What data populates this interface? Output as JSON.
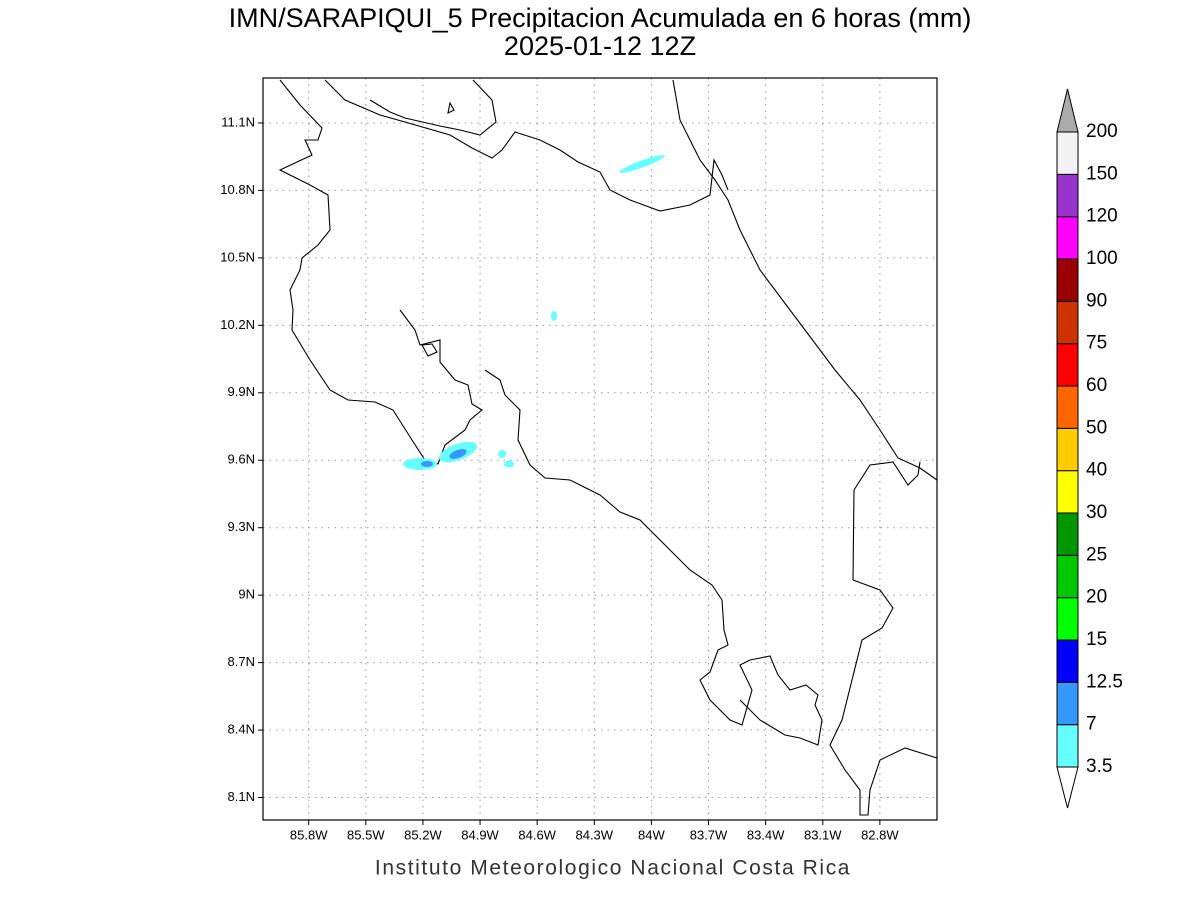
{
  "chart_data": {
    "type": "map",
    "title": "IMN/SARAPIQUI_5 Precipitacion Acumulada en 6 horas (mm)",
    "subtitle": "2025-01-12 12Z",
    "footer": "Instituto Meteorologico Nacional Costa Rica",
    "xlim": [
      -86.04,
      -82.5
    ],
    "ylim": [
      8.0,
      11.3
    ],
    "xticks": [
      {
        "value": -85.8,
        "label": "85.8W"
      },
      {
        "value": -85.5,
        "label": "85.5W"
      },
      {
        "value": -85.2,
        "label": "85.2W"
      },
      {
        "value": -84.9,
        "label": "84.9W"
      },
      {
        "value": -84.6,
        "label": "84.6W"
      },
      {
        "value": -84.3,
        "label": "84.3W"
      },
      {
        "value": -84.0,
        "label": "84W"
      },
      {
        "value": -83.7,
        "label": "83.7W"
      },
      {
        "value": -83.4,
        "label": "83.4W"
      },
      {
        "value": -83.1,
        "label": "83.1W"
      },
      {
        "value": -82.8,
        "label": "82.8W"
      }
    ],
    "yticks": [
      {
        "value": 11.1,
        "label": "11.1N"
      },
      {
        "value": 10.8,
        "label": "10.8N"
      },
      {
        "value": 10.5,
        "label": "10.5N"
      },
      {
        "value": 10.2,
        "label": "10.2N"
      },
      {
        "value": 9.9,
        "label": "9.9N"
      },
      {
        "value": 9.6,
        "label": "9.6N"
      },
      {
        "value": 9.3,
        "label": "9.3N"
      },
      {
        "value": 9.0,
        "label": "9N"
      },
      {
        "value": 8.7,
        "label": "8.7N"
      },
      {
        "value": 8.4,
        "label": "8.4N"
      },
      {
        "value": 8.1,
        "label": "8.1N"
      }
    ],
    "grid": true,
    "colorbar": {
      "levels": [
        3.5,
        7,
        12.5,
        15,
        20,
        25,
        30,
        40,
        50,
        60,
        75,
        90,
        100,
        120,
        150,
        200
      ],
      "colors": [
        "#ffffff",
        "#66ffff",
        "#3399ff",
        "#0000ff",
        "#00ff00",
        "#00c800",
        "#009600",
        "#ffff00",
        "#ffcc00",
        "#ff6600",
        "#ff0000",
        "#cc3300",
        "#990000",
        "#ff00ff",
        "#9933cc",
        "#f2f2f2",
        "#aaaaaa"
      ]
    }
  }
}
